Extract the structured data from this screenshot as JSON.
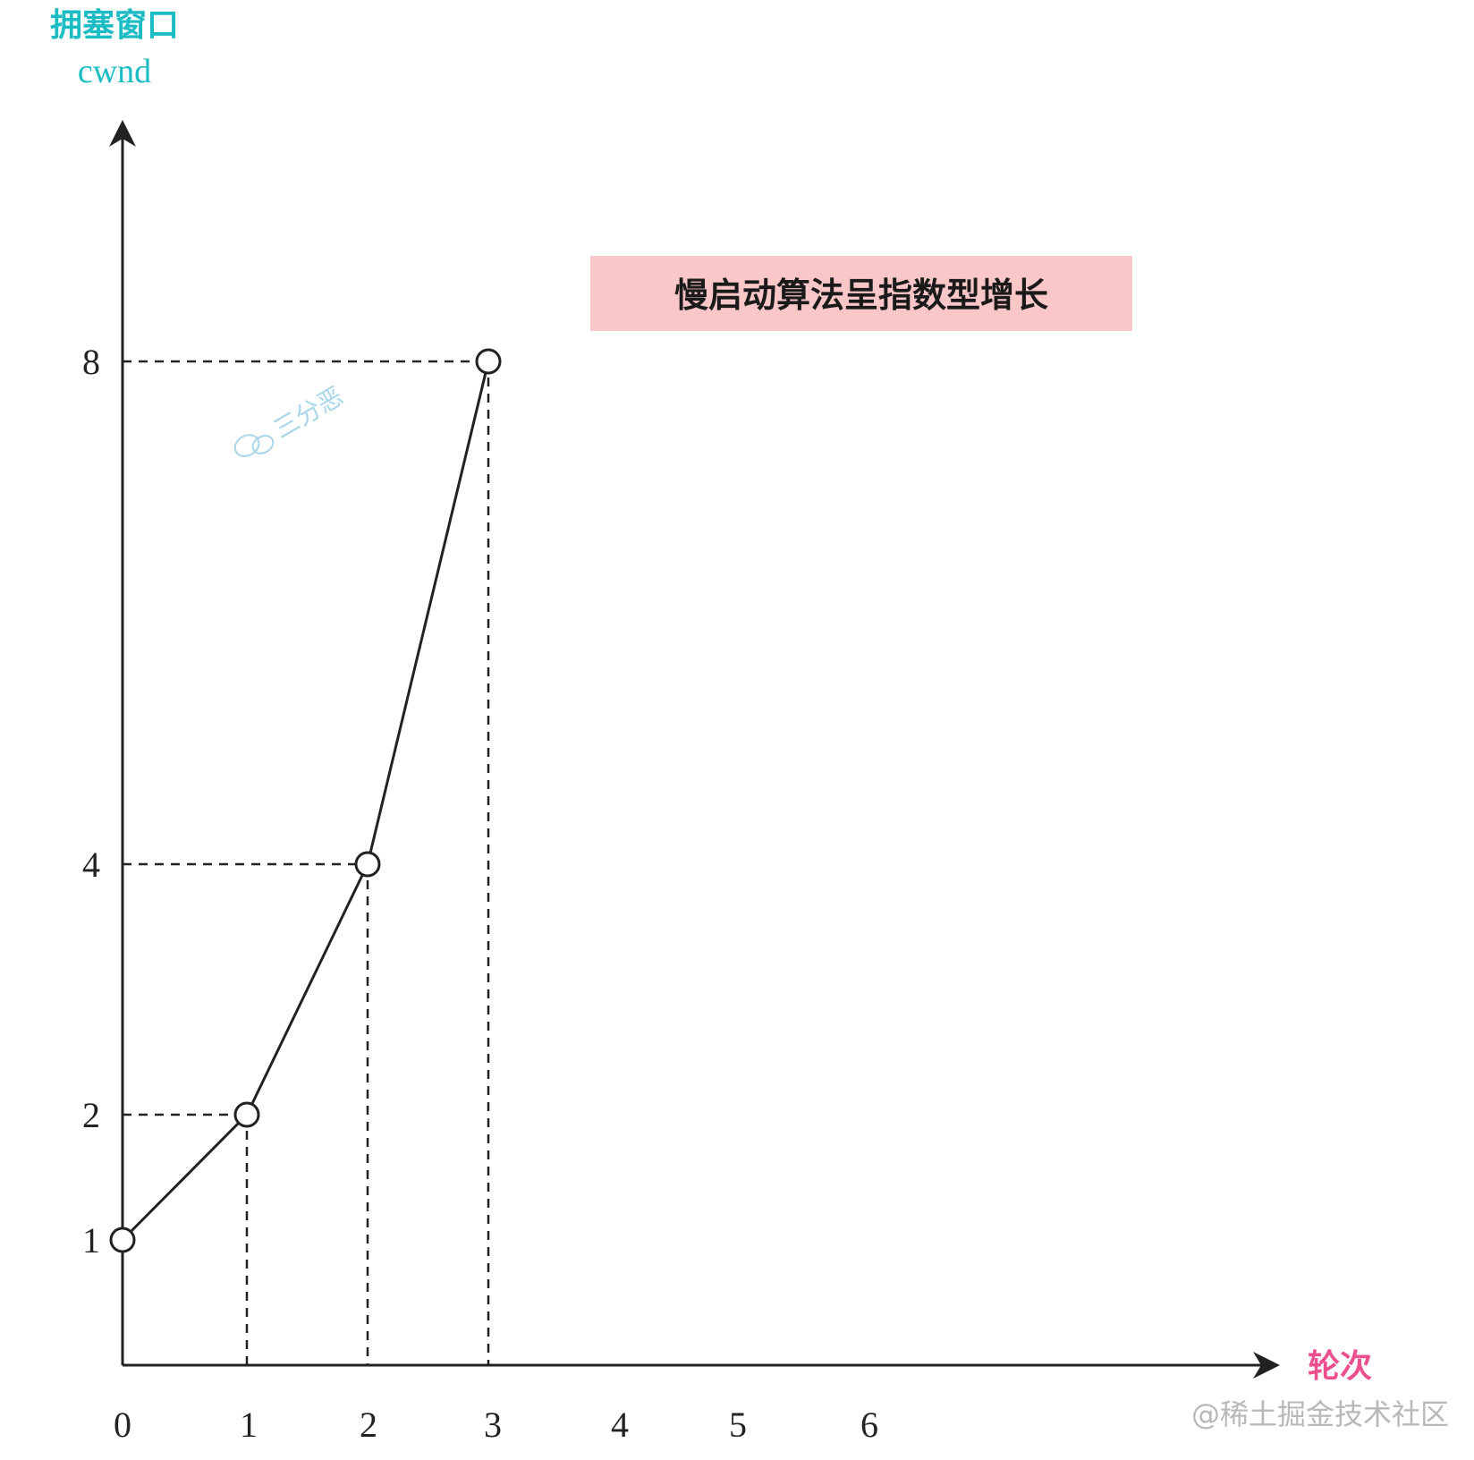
{
  "chart_data": {
    "type": "line",
    "ylabel": "拥塞窗口",
    "ylabel_sub": "cwnd",
    "xlabel": "轮次",
    "x_ticks": [
      "0",
      "1",
      "2",
      "3",
      "4",
      "5",
      "6"
    ],
    "y_ticks": [
      "1",
      "2",
      "4",
      "8"
    ],
    "x": [
      0,
      1,
      2,
      3
    ],
    "y": [
      1,
      2,
      4,
      8
    ],
    "annotation": "慢启动算法呈指数型增长",
    "watermark": "三分恶",
    "grid": false,
    "markers": "hollow-circle",
    "guides": "dashed",
    "colors": {
      "ylabel": "#1bbcc4",
      "xlabel": "#ec4e8e",
      "annotation_bg": "#f9c7c7",
      "line": "#222222",
      "watermark": "#a9d6e8"
    }
  },
  "credit": "@稀土掘金技术社区"
}
